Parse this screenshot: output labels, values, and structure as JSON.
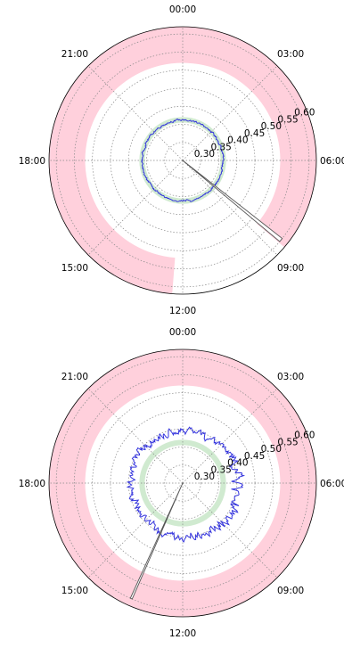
{
  "chart_data": [
    {
      "type": "polar-line",
      "theta_labels": [
        "00:00",
        "03:00",
        "06:00",
        "09:00",
        "12:00",
        "15:00",
        "18:00",
        "21:00"
      ],
      "r_ticks": [
        "0.30",
        "0.35",
        "0.40",
        "0.45",
        "0.50",
        "0.55",
        "0.60"
      ],
      "rlim": [
        0.25,
        0.62
      ],
      "grid": true,
      "bands": [
        {
          "name": "",
          "r_min": 0.52,
          "r_max": 0.62,
          "theta_start_hours": 8.7,
          "theta_end_hours": 12.3,
          "color": "#ffd0dc"
        },
        {
          "name": "",
          "r_min": 0.355,
          "r_max": 0.37,
          "theta_start_hours": 0,
          "theta_end_hours": 24,
          "color": "#c8e6c8"
        }
      ],
      "series": [
        {
          "mean_r": 0.362,
          "noise_amplitude": 0.005,
          "color": "#3333dd"
        }
      ],
      "pointer": {
        "theta_hours": 8.6,
        "r": 0.6,
        "wedge_width_hours": 0.12,
        "color": "#555555"
      }
    },
    {
      "type": "polar-line",
      "theta_labels": [
        "00:00",
        "03:00",
        "06:00",
        "09:00",
        "12:00",
        "15:00",
        "18:00",
        "21:00"
      ],
      "r_ticks": [
        "0.30",
        "0.35",
        "0.40",
        "0.45",
        "0.50",
        "0.55",
        "0.60"
      ],
      "rlim": [
        0.25,
        0.62
      ],
      "grid": true,
      "bands": [
        {
          "name": "",
          "r_min": 0.52,
          "r_max": 0.62,
          "theta_start_hours": 0,
          "theta_end_hours": 24,
          "color": "#ffd0dc"
        },
        {
          "name": "",
          "r_min": 0.355,
          "r_max": 0.37,
          "theta_start_hours": 0,
          "theta_end_hours": 24,
          "color": "#c8e6c8"
        }
      ],
      "series": [
        {
          "mean_r": 0.395,
          "noise_amplitude": 0.022,
          "color": "#3333dd"
        }
      ],
      "pointer": {
        "theta_hours": 13.6,
        "r": 0.6,
        "wedge_width_hours": 0.06,
        "color": "#555555"
      }
    }
  ],
  "colors": {
    "band_pink": "#ffd0dc",
    "band_green": "#c8e6c8",
    "series_blue": "#3333dd",
    "pointer": "#555555"
  }
}
